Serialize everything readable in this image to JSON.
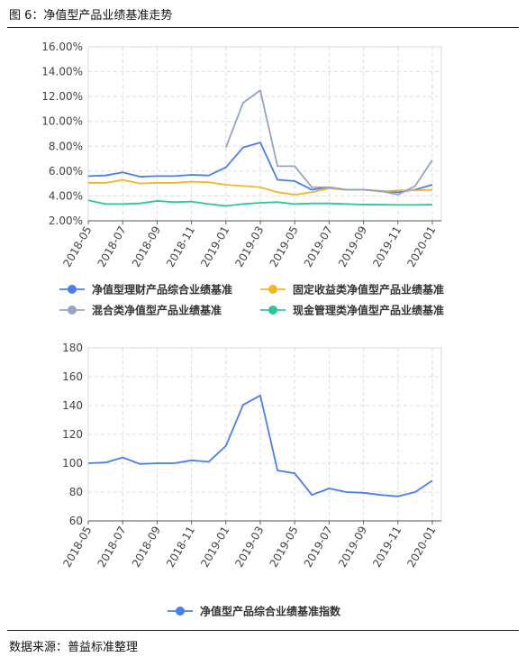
{
  "figure_title": "图 6：净值型产品业绩基准走势",
  "source": "数据来源：普益标准整理",
  "chart_data": [
    {
      "type": "line",
      "categories": [
        "2018-05",
        "2018-06",
        "2018-07",
        "2018-08",
        "2018-09",
        "2018-10",
        "2018-11",
        "2018-12",
        "2019-01",
        "2019-02",
        "2019-03",
        "2019-04",
        "2019-05",
        "2019-06",
        "2019-07",
        "2019-08",
        "2019-09",
        "2019-10",
        "2019-11",
        "2019-12",
        "2020-01"
      ],
      "x_tick_labels": [
        "2018-05",
        "2018-07",
        "2018-09",
        "2018-11",
        "2019-01",
        "2019-03",
        "2019-05",
        "2019-07",
        "2019-09",
        "2019-11",
        "2020-01"
      ],
      "ylim": [
        0.02,
        0.16
      ],
      "y_ticks": [
        0.02,
        0.04,
        0.06,
        0.08,
        0.1,
        0.12,
        0.14,
        0.16
      ],
      "y_tick_labels": [
        "2.00%",
        "4.00%",
        "6.00%",
        "8.00%",
        "10.00%",
        "12.00%",
        "14.00%",
        "16.00%"
      ],
      "grid": true,
      "legend": "bottom",
      "series": [
        {
          "name": "净值型理财产品综合业绩基准",
          "color": "#4a7ee8",
          "values": [
            0.056,
            0.0565,
            0.059,
            0.0555,
            0.056,
            0.056,
            0.057,
            0.0565,
            0.063,
            0.079,
            0.083,
            0.053,
            0.052,
            0.045,
            0.047,
            0.045,
            0.045,
            0.044,
            0.043,
            0.045,
            0.049
          ]
        },
        {
          "name": "固定收益类净值型产品业绩基准",
          "color": "#f4b52a",
          "values": [
            0.0505,
            0.0505,
            0.053,
            0.05,
            0.0505,
            0.0505,
            0.0515,
            0.051,
            0.049,
            0.048,
            0.047,
            0.043,
            0.041,
            0.043,
            0.046,
            0.045,
            0.045,
            0.0435,
            0.0445,
            0.0445,
            0.045
          ]
        },
        {
          "name": "混合类净值型产品业绩基准",
          "color": "#98a3c0",
          "values": [
            null,
            null,
            null,
            null,
            null,
            null,
            null,
            null,
            0.079,
            0.115,
            0.125,
            0.064,
            0.064,
            0.047,
            0.047,
            0.045,
            0.045,
            0.044,
            0.041,
            0.048,
            0.069
          ]
        },
        {
          "name": "现金管理类净值型产品业绩基准",
          "color": "#2fc695",
          "values": [
            0.0365,
            0.0335,
            0.0335,
            0.034,
            0.036,
            0.035,
            0.0355,
            0.0335,
            0.032,
            0.0335,
            0.0345,
            0.035,
            0.0335,
            0.034,
            0.034,
            0.0335,
            0.033,
            0.033,
            0.0328,
            0.0328,
            0.033
          ]
        }
      ]
    },
    {
      "type": "line",
      "categories": [
        "2018-05",
        "2018-06",
        "2018-07",
        "2018-08",
        "2018-09",
        "2018-10",
        "2018-11",
        "2018-12",
        "2019-01",
        "2019-02",
        "2019-03",
        "2019-04",
        "2019-05",
        "2019-06",
        "2019-07",
        "2019-08",
        "2019-09",
        "2019-10",
        "2019-11",
        "2019-12",
        "2020-01"
      ],
      "x_tick_labels": [
        "2018-05",
        "2018-07",
        "2018-09",
        "2018-11",
        "2019-01",
        "2019-03",
        "2019-05",
        "2019-07",
        "2019-09",
        "2019-11",
        "2020-01"
      ],
      "ylim": [
        60,
        180
      ],
      "y_ticks": [
        60,
        80,
        100,
        120,
        140,
        160,
        180
      ],
      "y_tick_labels": [
        "60",
        "80",
        "100",
        "120",
        "140",
        "160",
        "180"
      ],
      "grid": true,
      "legend": "bottom",
      "series": [
        {
          "name": "净值型产品综合业绩基准指数",
          "color": "#4a7ee8",
          "values": [
            100,
            100.5,
            104,
            99.5,
            100,
            100,
            102,
            101,
            112,
            140.5,
            147,
            95,
            93,
            78,
            82.5,
            80,
            79.5,
            78,
            77,
            80,
            88
          ]
        }
      ]
    }
  ]
}
